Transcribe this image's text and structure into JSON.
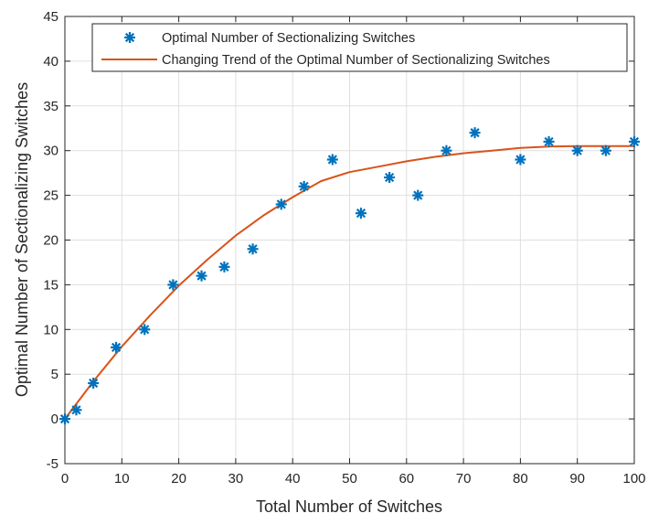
{
  "chart_data": {
    "type": "scatter",
    "title": "",
    "xlabel": "Total Number of Switches",
    "ylabel": "Optimal Number of Sectionalizing Switches",
    "xlim": [
      0,
      100
    ],
    "ylim": [
      -5,
      45
    ],
    "xticks": [
      0,
      10,
      20,
      30,
      40,
      50,
      60,
      70,
      80,
      90,
      100
    ],
    "yticks": [
      -5,
      0,
      5,
      10,
      15,
      20,
      25,
      30,
      35,
      40,
      45
    ],
    "grid": true,
    "legend_position": "top",
    "series": [
      {
        "name": "Optimal Number of Sectionalizing Switches",
        "kind": "scatter",
        "marker": "asterisk",
        "color": "#0072BD",
        "x": [
          0,
          2,
          5,
          9,
          14,
          19,
          24,
          28,
          33,
          38,
          42,
          47,
          52,
          57,
          62,
          67,
          72,
          80,
          85,
          90,
          95,
          100
        ],
        "y": [
          0,
          1,
          4,
          8,
          10,
          15,
          16,
          17,
          19,
          24,
          26,
          29,
          23,
          27,
          25,
          30,
          32,
          29,
          31,
          30,
          30,
          31
        ]
      },
      {
        "name": "Changing Trend of the Optimal Number of Sectionalizing Switches",
        "kind": "line",
        "color": "#D95319",
        "x": [
          0,
          5,
          10,
          15,
          20,
          25,
          30,
          35,
          40,
          45,
          50,
          55,
          60,
          65,
          70,
          75,
          80,
          85,
          90,
          95,
          100
        ],
        "y": [
          0,
          4.2,
          8.1,
          11.6,
          14.9,
          17.8,
          20.5,
          22.8,
          24.8,
          26.6,
          27.6,
          28.2,
          28.8,
          29.3,
          29.7,
          30.0,
          30.3,
          30.45,
          30.5,
          30.5,
          30.5
        ]
      }
    ]
  }
}
